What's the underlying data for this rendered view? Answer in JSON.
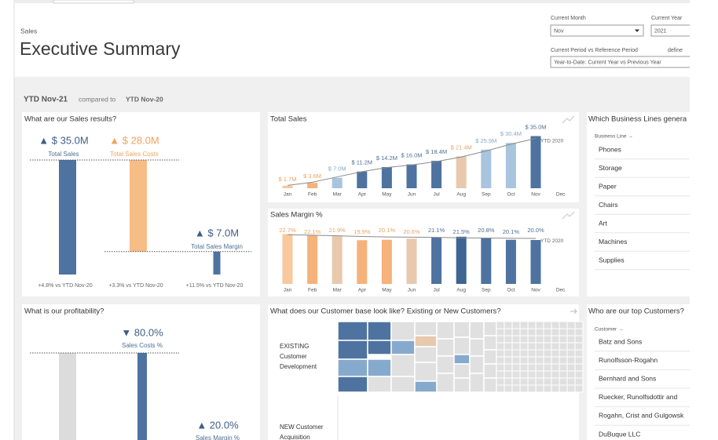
{
  "header": {
    "section": "Sales",
    "title": "Executive Summary"
  },
  "filters": [
    {
      "label": "Current Month",
      "value": "Nov"
    },
    {
      "label": "Current Year",
      "value": "2021"
    },
    {
      "label": "Current Period vs Reference Period",
      "value": "Year-to-Date: Current Year vs Previous Year"
    },
    {
      "label": "define"
    }
  ],
  "period": {
    "current": "YTD Nov-21",
    "compared": "compared to",
    "reference": "YTD Nov-20"
  },
  "chart_data": [
    {
      "type": "waterfall",
      "title": "What are our Sales results?",
      "categories": [
        "Total Sales",
        "Total Sales Costs",
        "Total Sales Margin"
      ],
      "values": [
        35.0,
        28.0,
        7.0
      ],
      "value_labels": [
        "▲ $ 35.0M",
        "▲ $ 28.0M",
        "▲ $ 7.0M"
      ],
      "colors": [
        "#4e73a0",
        "#f7bd86",
        "#4e73a0"
      ],
      "comparisons": [
        "+4.8% vs YTD Nov-20",
        "+3.3% vs YTD Nov-20",
        "+11.5% vs YTD Nov-20"
      ]
    },
    {
      "type": "bar",
      "title": "Total Sales",
      "categories": [
        "Jan",
        "Feb",
        "Mar",
        "Apr",
        "May",
        "Jun",
        "Jul",
        "Aug",
        "Sep",
        "Oct",
        "Nov",
        "Dec"
      ],
      "values": [
        1.7,
        3.6,
        7.0,
        11.2,
        14.2,
        16.0,
        18.4,
        21.4,
        25.9,
        30.4,
        35.0,
        null
      ],
      "value_labels": [
        "$ 1.7M",
        "$ 3.6M",
        "$ 7.0M",
        "$ 11.2M",
        "$ 14.2M",
        "$ 16.0M",
        "$ 18.4M",
        "$ 21.4M",
        "$ 25.9M",
        "$ 30.4M",
        "$ 35.0M",
        null
      ],
      "colors": [
        "#f7c99c",
        "#f5b27a",
        "#a8c4de",
        "#4e73a0",
        "#4e73a0",
        "#4e73a0",
        "#4e73a0",
        "#e8c9ad",
        "#a8c4de",
        "#a8c4de",
        "#4e73a0",
        null
      ],
      "reference": {
        "name": "YTD 2020",
        "color": "#8a8a8a",
        "values": [
          1.9,
          4.0,
          7.6,
          11.1,
          13.9,
          15.6,
          17.9,
          21.0,
          25.0,
          29.6,
          33.4,
          null
        ]
      }
    },
    {
      "type": "bar",
      "title": "Sales Margin %",
      "categories": [
        "Jan",
        "Feb",
        "Mar",
        "Apr",
        "May",
        "Jun",
        "Jul",
        "Aug",
        "Sep",
        "Oct",
        "Nov",
        "Dec"
      ],
      "values": [
        22.7,
        22.1,
        21.9,
        19.9,
        20.1,
        20.6,
        21.1,
        21.5,
        20.8,
        20.1,
        20.0,
        null
      ],
      "value_labels": [
        "22.7%",
        "22.1%",
        "21.9%",
        "19.9%",
        "20.1%",
        "20.6%",
        "21.1%",
        "21.5%",
        "20.8%",
        "20.1%",
        "20.0%",
        null
      ],
      "colors": [
        "#f7c99c",
        "#f5b27a",
        "#e8c9ad",
        "#f5b27a",
        "#f5b27a",
        "#e8c9ad",
        "#4e73a0",
        "#3f6592",
        "#4e73a0",
        "#4e73a0",
        "#4e73a0",
        null
      ],
      "reference": {
        "name": "YTD 2020",
        "color": "#8a8a8a",
        "values": [
          22.4,
          22.2,
          21.9,
          21.6,
          21.4,
          21.3,
          21.2,
          21.0,
          20.9,
          20.8,
          20.7,
          null
        ]
      }
    },
    {
      "type": "kpi",
      "title": "What is our profitability?",
      "categories": [
        "Sales Costs %",
        "Sales Margin %"
      ],
      "values": [
        80.0,
        20.0
      ],
      "value_labels": [
        "▼ 80.0%",
        "▲ 20.0%"
      ],
      "colors": [
        "#4e73a0",
        "#4e73a0"
      ]
    }
  ],
  "business_lines": {
    "title": "Which Business Lines genera",
    "header": "Business Line →",
    "items": [
      "Phones",
      "Storage",
      "Paper",
      "Chairs",
      "Art",
      "Machines",
      "Supplies"
    ]
  },
  "customer_base": {
    "title": "What does our Customer base look like? Existing or New Customers?",
    "segments": [
      [
        "EXISTING",
        "Customer",
        "Development"
      ],
      [
        "NEW Customer",
        "Acquisition"
      ]
    ]
  },
  "customers": {
    "title": "Who are our top Customers?",
    "header": "Customer →",
    "items": [
      "Batz and Sons",
      "Runolfsson-Rogahn",
      "Bernhard and Sons",
      "Ruecker, Runolfsdottir and",
      "Rogahn, Crist and Gulgowsk",
      "DuBuque LLC"
    ]
  }
}
